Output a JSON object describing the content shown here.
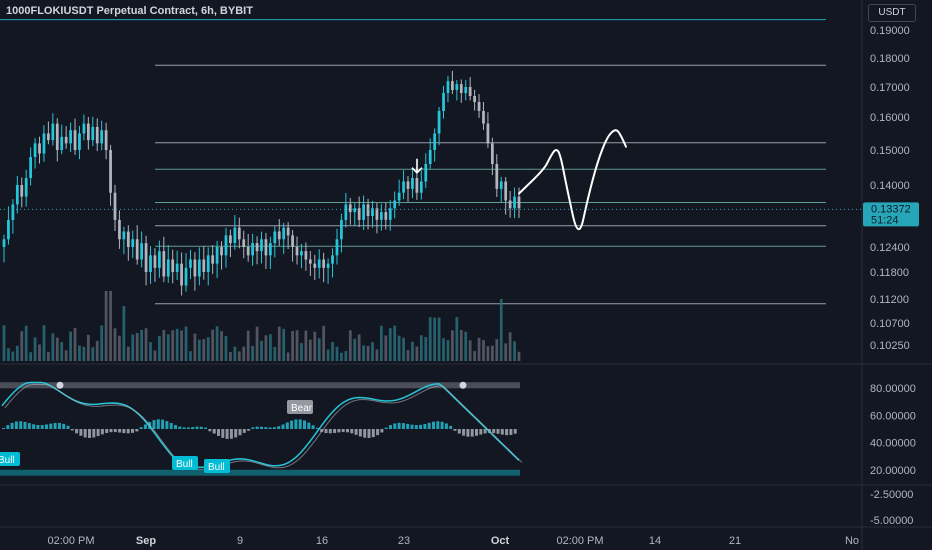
{
  "title": "1000FLOKIUSDT Perpetual Contract, 6h, BYBIT",
  "currency_button": "USDT",
  "colors": {
    "background": "#131722",
    "bull_candle": "#26c6da",
    "bear_candle": "#b2b5be",
    "level_white": "#9aa0ab",
    "level_green": "#5e9e8e",
    "volume": "#2a6f7a",
    "price_label": "#26a6b8",
    "band": "#4a4e59",
    "band_low": "#10606e"
  },
  "price_label": {
    "price": "0.13372",
    "countdown": "51:24"
  },
  "chart_data": [
    {
      "type": "candlestick",
      "title": "",
      "y_ticks": [
        "0.19000",
        "0.18000",
        "0.17000",
        "0.16000",
        "0.15000",
        "0.14000",
        "0.12400",
        "0.11800",
        "0.11200",
        "0.10700",
        "0.10250"
      ],
      "x_ticks": [
        {
          "label": "02:00 PM",
          "bold": false
        },
        {
          "label": "Sep",
          "bold": true
        },
        {
          "label": "9",
          "bold": false
        },
        {
          "label": "16",
          "bold": false
        },
        {
          "label": "23",
          "bold": false
        },
        {
          "label": "Oct",
          "bold": true
        },
        {
          "label": "02:00 PM",
          "bold": false
        },
        {
          "label": "14",
          "bold": false
        },
        {
          "label": "21",
          "bold": false
        },
        {
          "label": "No",
          "bold": false
        }
      ],
      "horizontal_levels": [
        {
          "price": 0.1937,
          "color": "teal"
        },
        {
          "price": 0.1775,
          "color": "white"
        },
        {
          "price": 0.1522,
          "color": "white"
        },
        {
          "price": 0.1445,
          "color": "green"
        },
        {
          "price": 0.1355,
          "color": "green"
        },
        {
          "price": 0.1295,
          "color": "white"
        },
        {
          "price": 0.1242,
          "color": "green"
        },
        {
          "price": 0.111,
          "color": "white"
        }
      ],
      "candle_close_path": [
        0.126,
        0.131,
        0.135,
        0.14,
        0.137,
        0.142,
        0.148,
        0.152,
        0.149,
        0.155,
        0.153,
        0.158,
        0.15,
        0.154,
        0.152,
        0.156,
        0.15,
        0.155,
        0.158,
        0.153,
        0.157,
        0.152,
        0.156,
        0.15,
        0.138,
        0.131,
        0.126,
        0.128,
        0.124,
        0.126,
        0.121,
        0.125,
        0.118,
        0.122,
        0.119,
        0.123,
        0.117,
        0.121,
        0.118,
        0.12,
        0.115,
        0.119,
        0.121,
        0.117,
        0.121,
        0.118,
        0.122,
        0.12,
        0.124,
        0.122,
        0.127,
        0.125,
        0.129,
        0.126,
        0.124,
        0.122,
        0.125,
        0.123,
        0.126,
        0.122,
        0.125,
        0.128,
        0.126,
        0.129,
        0.127,
        0.124,
        0.122,
        0.123,
        0.121,
        0.12,
        0.119,
        0.121,
        0.119,
        0.12,
        0.122,
        0.126,
        0.131,
        0.135,
        0.133,
        0.134,
        0.131,
        0.135,
        0.132,
        0.134,
        0.131,
        0.133,
        0.131,
        0.134,
        0.136,
        0.138,
        0.141,
        0.139,
        0.142,
        0.138,
        0.141,
        0.146,
        0.15,
        0.155,
        0.162,
        0.168,
        0.172,
        0.169,
        0.171,
        0.168,
        0.17,
        0.167,
        0.165,
        0.162,
        0.158,
        0.152,
        0.146,
        0.139,
        0.141,
        0.136,
        0.134,
        0.137,
        0.134
      ],
      "projection_sketch": [
        [
          0.1341,
          0.1378
        ],
        [
          0.1385,
          0.1445
        ],
        [
          0.1395,
          0.1478
        ],
        [
          0.1405,
          0.1505
        ],
        [
          0.1413,
          0.149
        ],
        [
          0.1425,
          0.139
        ],
        [
          0.1445,
          0.1255
        ],
        [
          0.1462,
          0.137
        ],
        [
          0.1478,
          0.1465
        ],
        [
          0.1495,
          0.154
        ],
        [
          0.151,
          0.1565
        ],
        [
          0.1518,
          0.1548
        ],
        [
          0.1528,
          0.151
        ]
      ],
      "arrow_marker": {
        "at_price": 0.1435
      }
    },
    {
      "type": "oscillator",
      "y_ticks": [
        "80.00000",
        "60.00000",
        "40.00000",
        "20.00000",
        "-2.50000",
        "-5.00000"
      ],
      "labels": [
        {
          "text": "Bull",
          "kind": "bull"
        },
        {
          "text": "Bull",
          "kind": "bull"
        },
        {
          "text": "Bull",
          "kind": "bull"
        },
        {
          "text": "Bear",
          "kind": "bear"
        }
      ],
      "upper_band": 82,
      "lower_band": 18
    }
  ]
}
